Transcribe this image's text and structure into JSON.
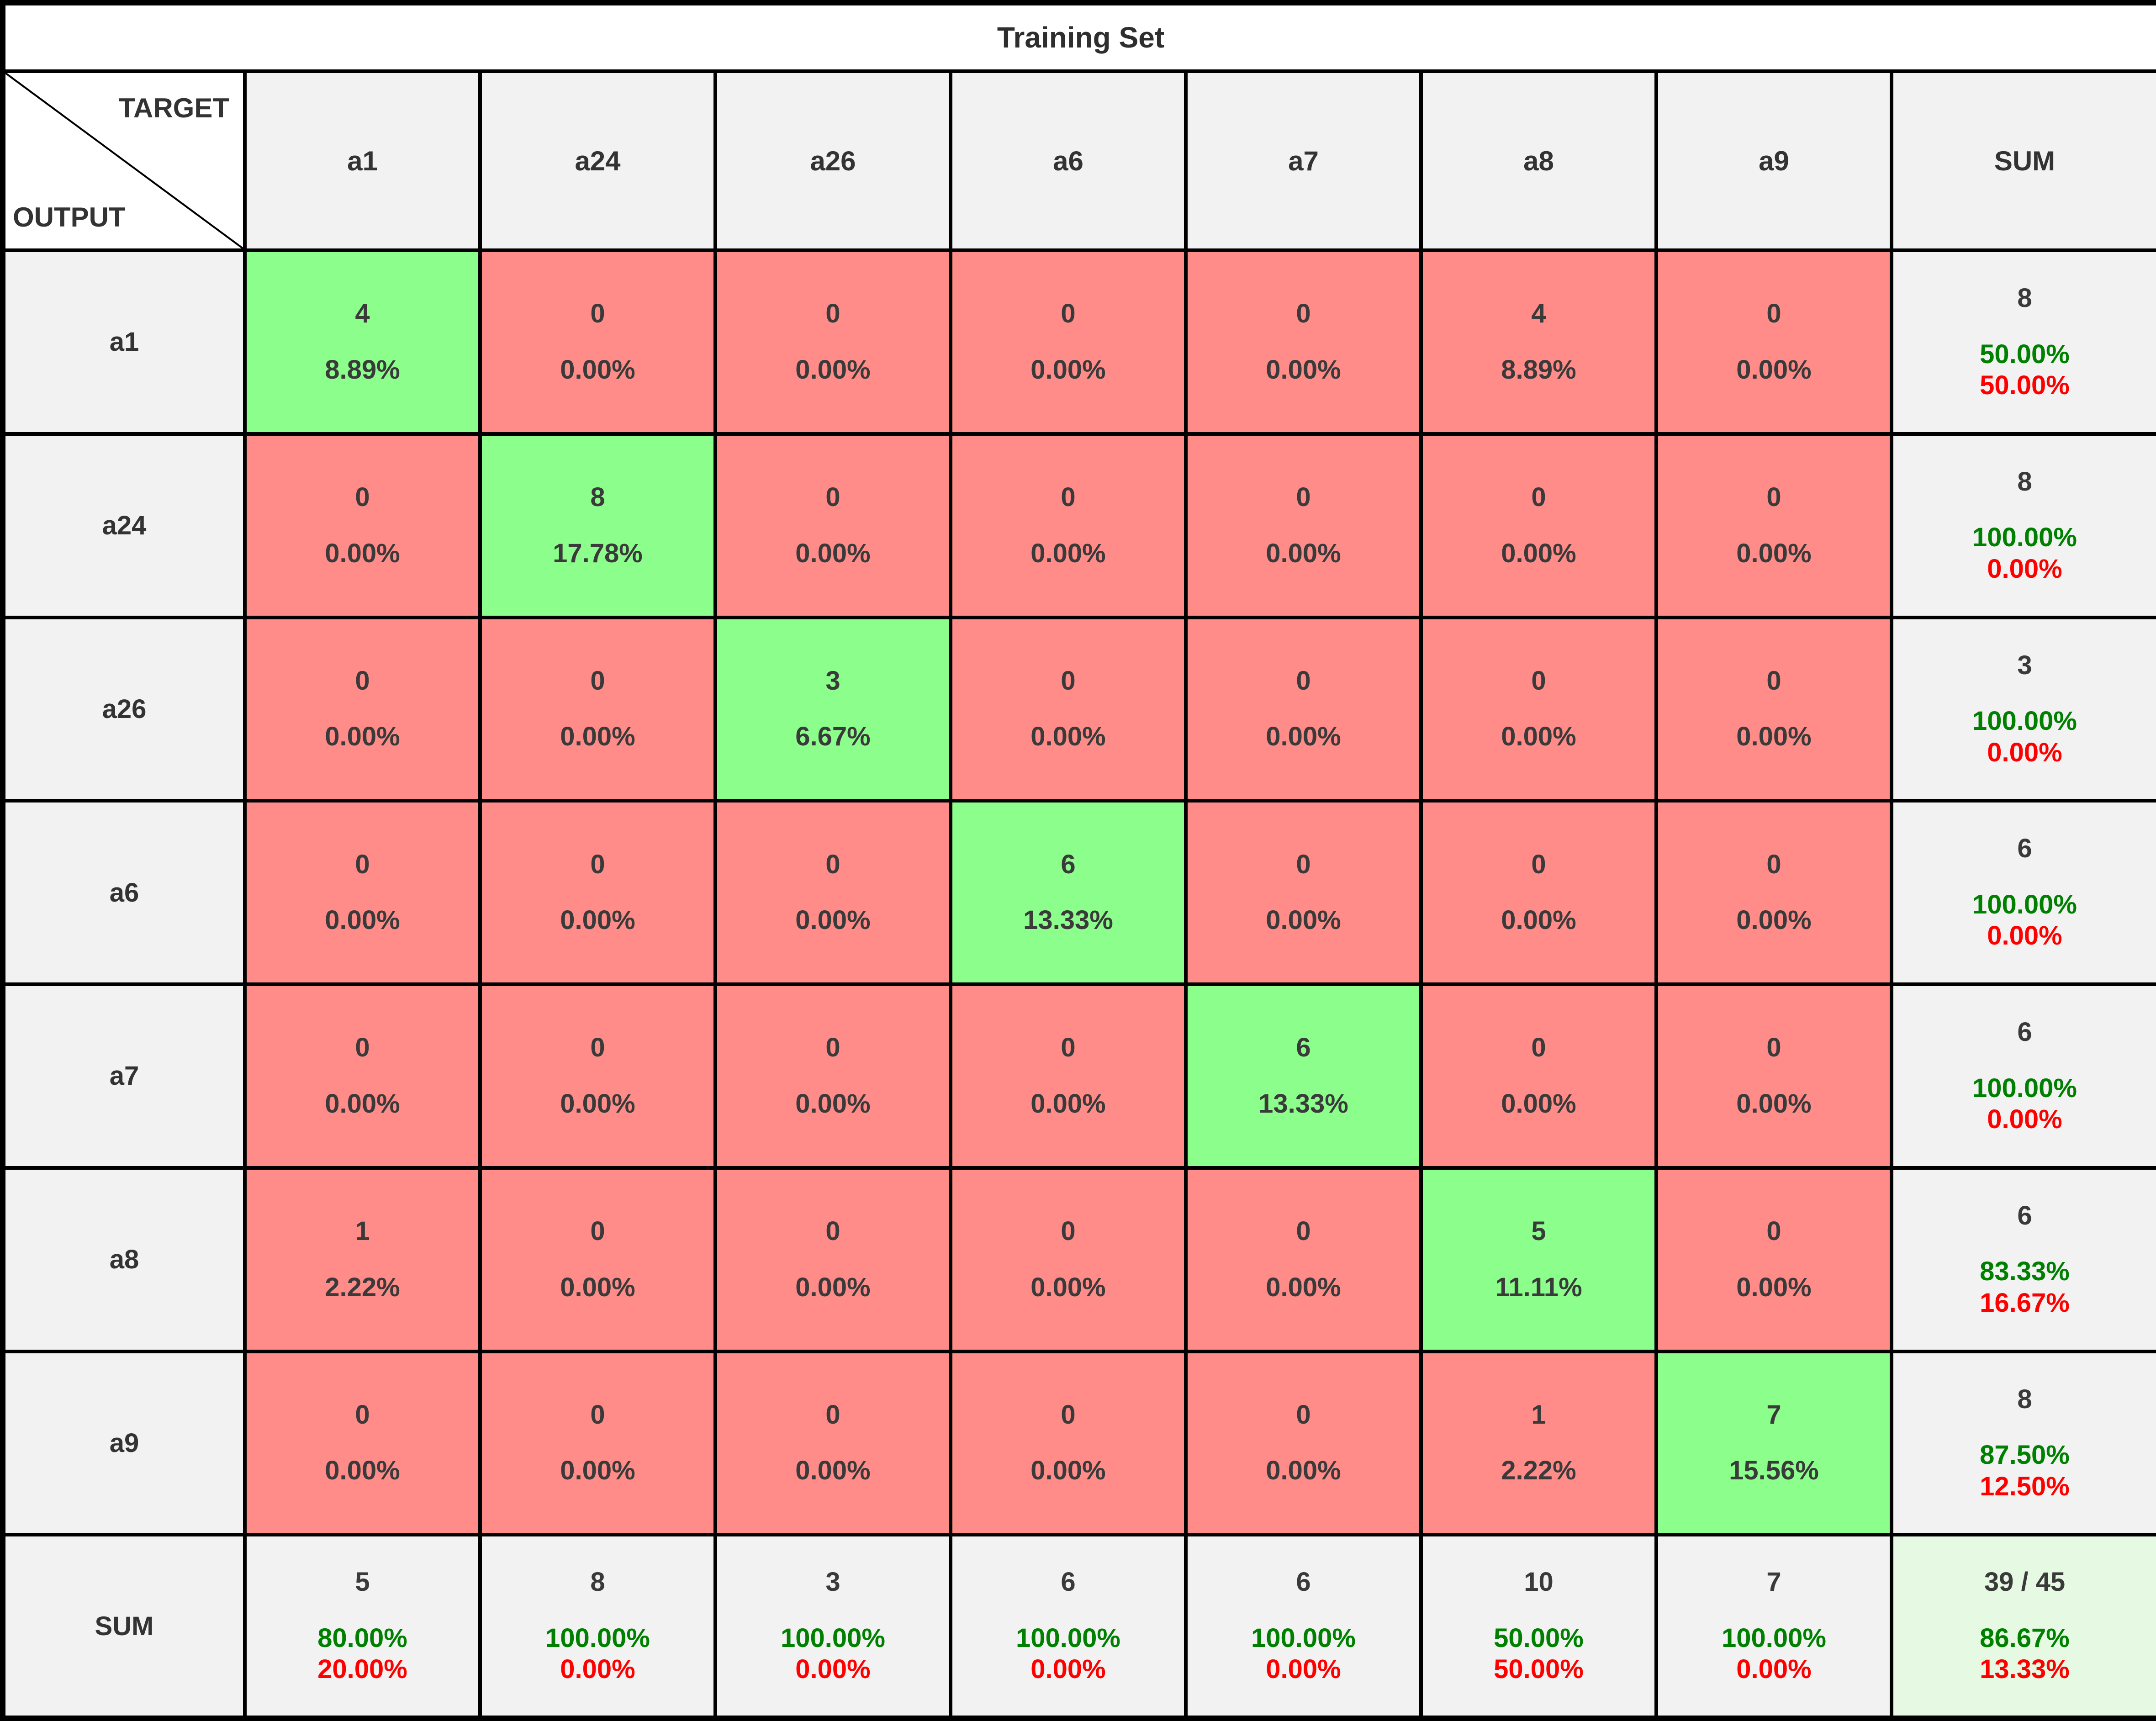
{
  "chart_data": {
    "type": "table",
    "subtype": "confusion-matrix",
    "title": "Training Set",
    "col_axis_label": "TARGET",
    "row_axis_label": "OUTPUT",
    "classes": [
      "a1",
      "a24",
      "a26",
      "a6",
      "a7",
      "a8",
      "a9"
    ],
    "matrix_counts": [
      [
        4,
        0,
        0,
        0,
        0,
        4,
        0
      ],
      [
        0,
        8,
        0,
        0,
        0,
        0,
        0
      ],
      [
        0,
        0,
        3,
        0,
        0,
        0,
        0
      ],
      [
        0,
        0,
        0,
        6,
        0,
        0,
        0
      ],
      [
        0,
        0,
        0,
        0,
        6,
        0,
        0
      ],
      [
        1,
        0,
        0,
        0,
        0,
        5,
        0
      ],
      [
        0,
        0,
        0,
        0,
        0,
        1,
        7
      ]
    ],
    "total_correct": 39,
    "total_samples": 45,
    "overall_accuracy_pct": 86.67,
    "overall_error_pct": 13.33,
    "col_headers": [
      "a1",
      "a24",
      "a26",
      "a6",
      "a7",
      "a8",
      "a9",
      "SUM"
    ],
    "rows": [
      {
        "label": "a1",
        "cells": [
          {
            "count": "4",
            "pct": "8.89%",
            "bg": "green"
          },
          {
            "count": "0",
            "pct": "0.00%",
            "bg": "red"
          },
          {
            "count": "0",
            "pct": "0.00%",
            "bg": "red"
          },
          {
            "count": "0",
            "pct": "0.00%",
            "bg": "red"
          },
          {
            "count": "0",
            "pct": "0.00%",
            "bg": "red"
          },
          {
            "count": "4",
            "pct": "8.89%",
            "bg": "red"
          },
          {
            "count": "0",
            "pct": "0.00%",
            "bg": "red"
          }
        ],
        "sum": {
          "count": "8",
          "green": "50.00%",
          "red": "50.00%",
          "bg": "plain"
        }
      },
      {
        "label": "a24",
        "cells": [
          {
            "count": "0",
            "pct": "0.00%",
            "bg": "red"
          },
          {
            "count": "8",
            "pct": "17.78%",
            "bg": "green"
          },
          {
            "count": "0",
            "pct": "0.00%",
            "bg": "red"
          },
          {
            "count": "0",
            "pct": "0.00%",
            "bg": "red"
          },
          {
            "count": "0",
            "pct": "0.00%",
            "bg": "red"
          },
          {
            "count": "0",
            "pct": "0.00%",
            "bg": "red"
          },
          {
            "count": "0",
            "pct": "0.00%",
            "bg": "red"
          }
        ],
        "sum": {
          "count": "8",
          "green": "100.00%",
          "red": "0.00%",
          "bg": "plain"
        }
      },
      {
        "label": "a26",
        "cells": [
          {
            "count": "0",
            "pct": "0.00%",
            "bg": "red"
          },
          {
            "count": "0",
            "pct": "0.00%",
            "bg": "red"
          },
          {
            "count": "3",
            "pct": "6.67%",
            "bg": "green"
          },
          {
            "count": "0",
            "pct": "0.00%",
            "bg": "red"
          },
          {
            "count": "0",
            "pct": "0.00%",
            "bg": "red"
          },
          {
            "count": "0",
            "pct": "0.00%",
            "bg": "red"
          },
          {
            "count": "0",
            "pct": "0.00%",
            "bg": "red"
          }
        ],
        "sum": {
          "count": "3",
          "green": "100.00%",
          "red": "0.00%",
          "bg": "plain"
        }
      },
      {
        "label": "a6",
        "cells": [
          {
            "count": "0",
            "pct": "0.00%",
            "bg": "red"
          },
          {
            "count": "0",
            "pct": "0.00%",
            "bg": "red"
          },
          {
            "count": "0",
            "pct": "0.00%",
            "bg": "red"
          },
          {
            "count": "6",
            "pct": "13.33%",
            "bg": "green"
          },
          {
            "count": "0",
            "pct": "0.00%",
            "bg": "red"
          },
          {
            "count": "0",
            "pct": "0.00%",
            "bg": "red"
          },
          {
            "count": "0",
            "pct": "0.00%",
            "bg": "red"
          }
        ],
        "sum": {
          "count": "6",
          "green": "100.00%",
          "red": "0.00%",
          "bg": "plain"
        }
      },
      {
        "label": "a7",
        "cells": [
          {
            "count": "0",
            "pct": "0.00%",
            "bg": "red"
          },
          {
            "count": "0",
            "pct": "0.00%",
            "bg": "red"
          },
          {
            "count": "0",
            "pct": "0.00%",
            "bg": "red"
          },
          {
            "count": "0",
            "pct": "0.00%",
            "bg": "red"
          },
          {
            "count": "6",
            "pct": "13.33%",
            "bg": "green"
          },
          {
            "count": "0",
            "pct": "0.00%",
            "bg": "red"
          },
          {
            "count": "0",
            "pct": "0.00%",
            "bg": "red"
          }
        ],
        "sum": {
          "count": "6",
          "green": "100.00%",
          "red": "0.00%",
          "bg": "plain"
        }
      },
      {
        "label": "a8",
        "cells": [
          {
            "count": "1",
            "pct": "2.22%",
            "bg": "red"
          },
          {
            "count": "0",
            "pct": "0.00%",
            "bg": "red"
          },
          {
            "count": "0",
            "pct": "0.00%",
            "bg": "red"
          },
          {
            "count": "0",
            "pct": "0.00%",
            "bg": "red"
          },
          {
            "count": "0",
            "pct": "0.00%",
            "bg": "red"
          },
          {
            "count": "5",
            "pct": "11.11%",
            "bg": "green"
          },
          {
            "count": "0",
            "pct": "0.00%",
            "bg": "red"
          }
        ],
        "sum": {
          "count": "6",
          "green": "83.33%",
          "red": "16.67%",
          "bg": "plain"
        }
      },
      {
        "label": "a9",
        "cells": [
          {
            "count": "0",
            "pct": "0.00%",
            "bg": "red"
          },
          {
            "count": "0",
            "pct": "0.00%",
            "bg": "red"
          },
          {
            "count": "0",
            "pct": "0.00%",
            "bg": "red"
          },
          {
            "count": "0",
            "pct": "0.00%",
            "bg": "red"
          },
          {
            "count": "0",
            "pct": "0.00%",
            "bg": "red"
          },
          {
            "count": "1",
            "pct": "2.22%",
            "bg": "red"
          },
          {
            "count": "7",
            "pct": "15.56%",
            "bg": "green"
          }
        ],
        "sum": {
          "count": "8",
          "green": "87.50%",
          "red": "12.50%",
          "bg": "plain"
        }
      },
      {
        "label": "SUM",
        "cells": [
          {
            "count": "5",
            "green": "80.00%",
            "red": "20.00%",
            "bg": "plain"
          },
          {
            "count": "8",
            "green": "100.00%",
            "red": "0.00%",
            "bg": "plain"
          },
          {
            "count": "3",
            "green": "100.00%",
            "red": "0.00%",
            "bg": "plain"
          },
          {
            "count": "6",
            "green": "100.00%",
            "red": "0.00%",
            "bg": "plain"
          },
          {
            "count": "6",
            "green": "100.00%",
            "red": "0.00%",
            "bg": "plain"
          },
          {
            "count": "10",
            "green": "50.00%",
            "red": "50.00%",
            "bg": "plain"
          },
          {
            "count": "7",
            "green": "100.00%",
            "red": "0.00%",
            "bg": "plain"
          }
        ],
        "sum": {
          "count": "39 / 45",
          "green": "86.67%",
          "red": "13.33%",
          "bg": "total"
        }
      }
    ]
  },
  "colors": {
    "correct_cell_green": "#8CFE8C",
    "incorrect_cell_red": "#FF8C88",
    "header_bg": "#F2F2F2",
    "total_cell_bg": "#E6F9E2",
    "count_text": "#3A3A3A",
    "pct_green_text": "#008000",
    "pct_red_text": "#FF0000",
    "border": "#000000"
  }
}
